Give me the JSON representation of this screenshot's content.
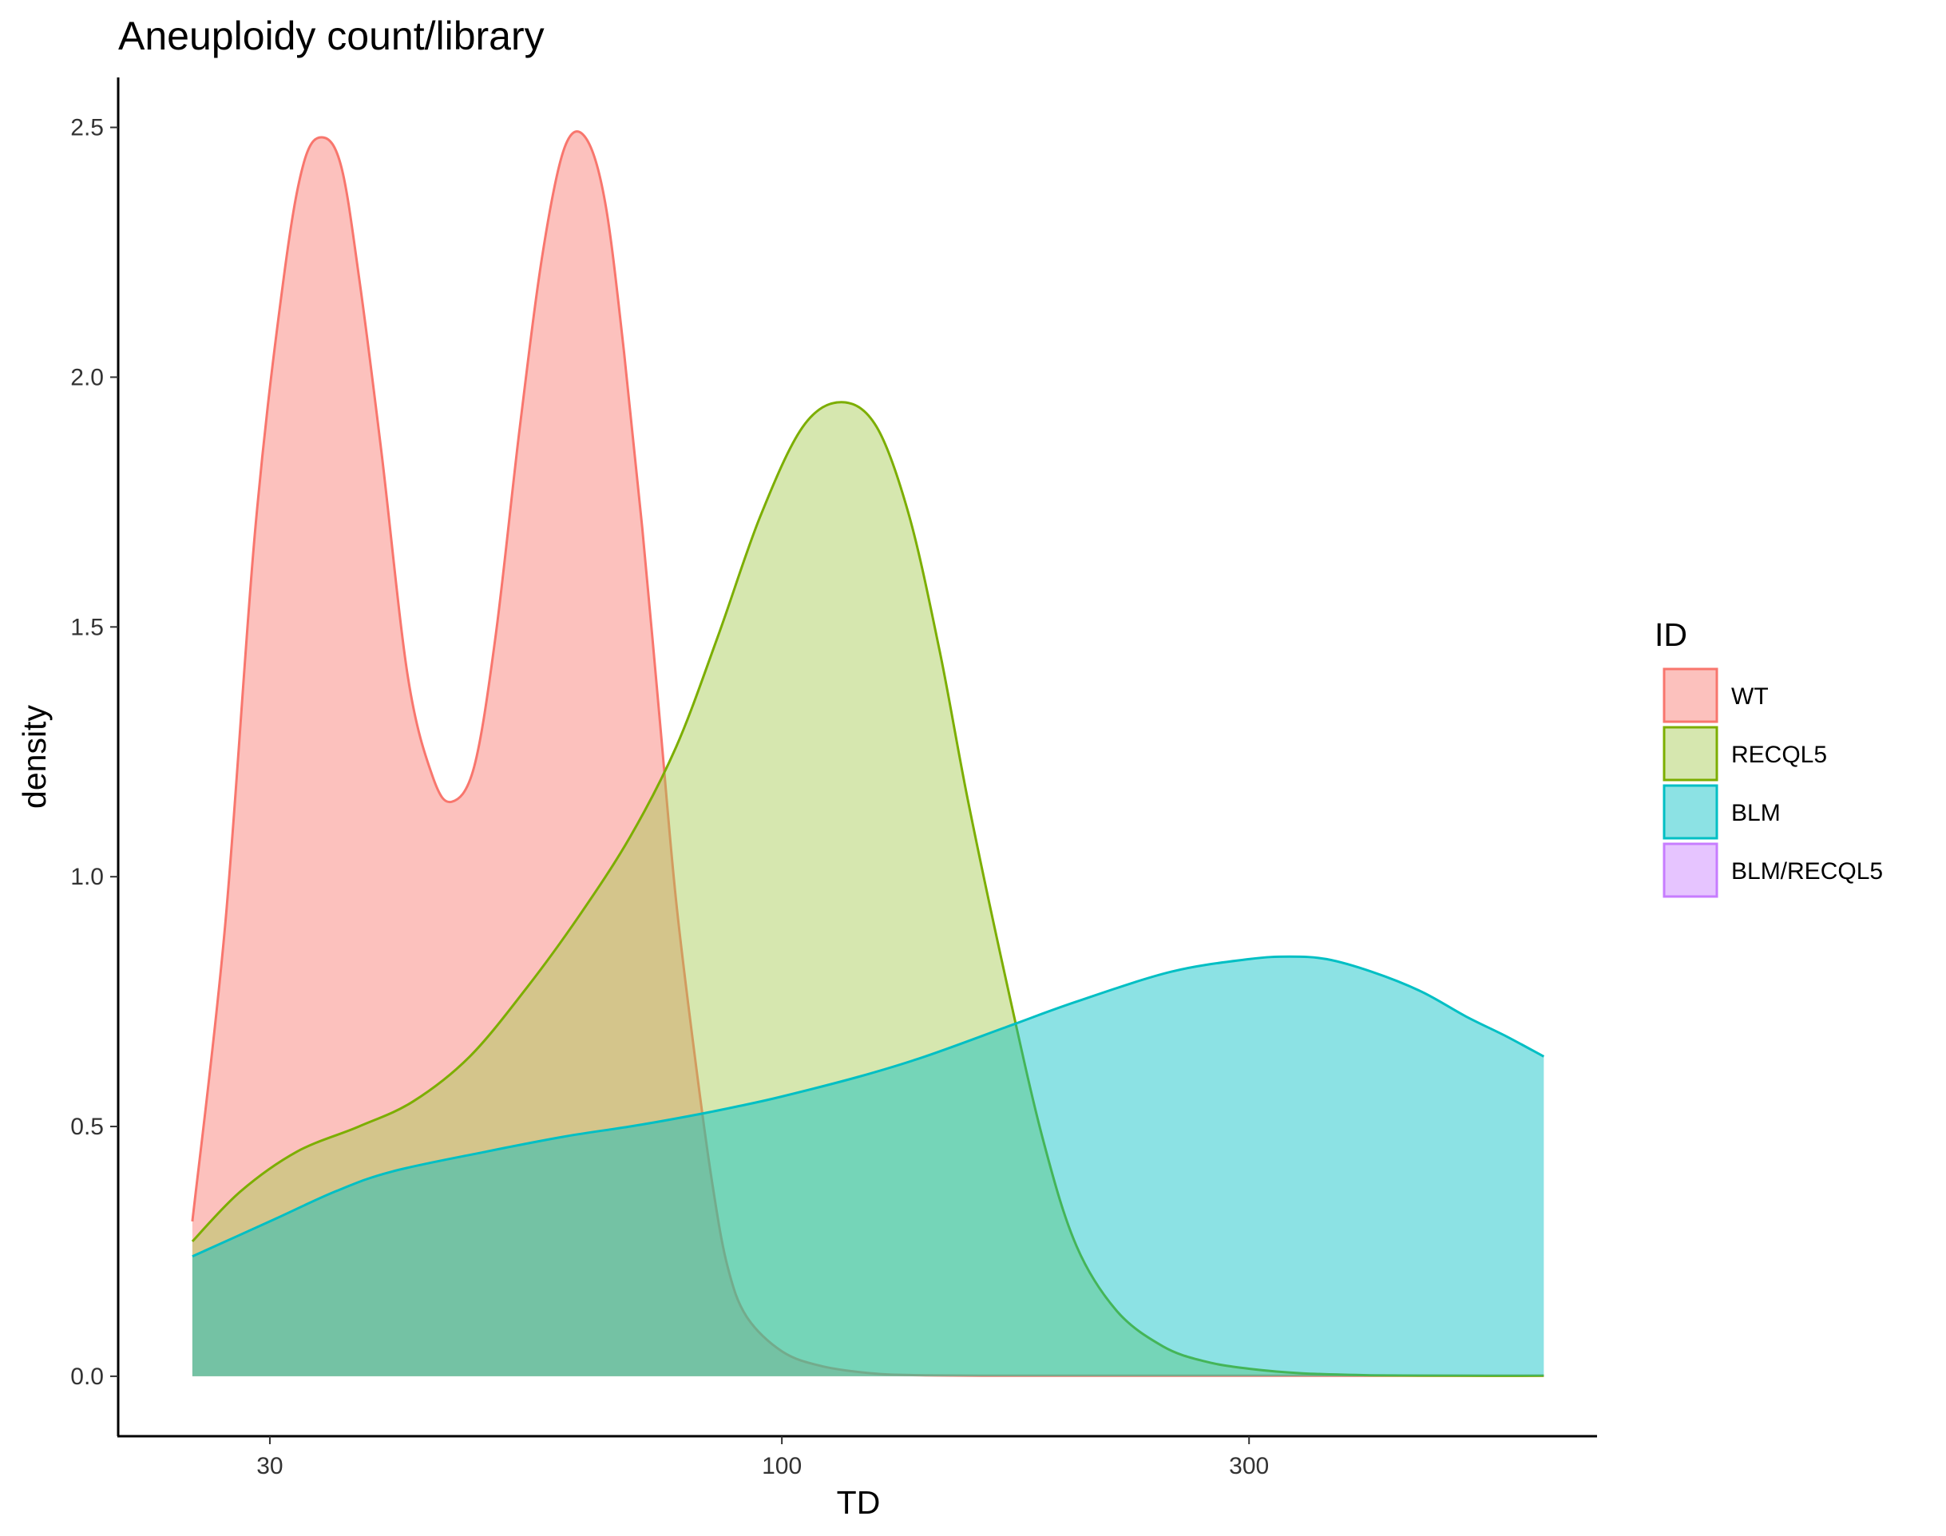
{
  "chart_data": {
    "type": "area",
    "title": "Aneuploidy count/library",
    "xlabel": "TD",
    "ylabel": "density",
    "x_scale": "log10",
    "xlim": [
      21,
      680
    ],
    "ylim": [
      -0.12,
      2.6
    ],
    "x_ticks": [
      30,
      100,
      300
    ],
    "x_tick_labels": [
      "30",
      "100",
      "300"
    ],
    "y_ticks": [
      0.0,
      0.5,
      1.0,
      1.5,
      2.0,
      2.5
    ],
    "y_tick_labels": [
      "0.0",
      "0.5",
      "1.0",
      "1.5",
      "2.0",
      "2.5"
    ],
    "grid": false,
    "legend": {
      "title": "ID",
      "position": "right",
      "entries": [
        "WT",
        "RECQL5",
        "BLM",
        "BLM/RECQL5"
      ]
    },
    "series": [
      {
        "name": "WT",
        "line_color": "#F8766D",
        "fill_color": "#F8766D",
        "x": [
          25,
          27,
          29,
          31,
          32.5,
          34,
          35.5,
          37,
          39,
          41.5,
          44,
          46,
          48.5,
          51,
          54,
          57,
          60,
          63,
          66,
          69,
          72,
          75,
          78,
          82,
          85,
          88,
          92,
          100,
          110,
          125,
          140,
          160,
          200,
          300,
          400,
          600
        ],
        "values": [
          0.31,
          0.9,
          1.7,
          2.2,
          2.43,
          2.48,
          2.42,
          2.2,
          1.85,
          1.4,
          1.2,
          1.15,
          1.22,
          1.48,
          1.9,
          2.25,
          2.46,
          2.48,
          2.35,
          2.05,
          1.7,
          1.32,
          0.95,
          0.6,
          0.38,
          0.22,
          0.12,
          0.05,
          0.02,
          0.005,
          0.002,
          0.001,
          0.001,
          0.001,
          0.001,
          0.001
        ]
      },
      {
        "name": "RECQL5",
        "line_color": "#7CAE00",
        "fill_color": "#A3C94E",
        "x": [
          25,
          28,
          32,
          37,
          42,
          48,
          55,
          62,
          70,
          78,
          86,
          95,
          105,
          115,
          125,
          135,
          145,
          155,
          170,
          185,
          200,
          220,
          245,
          270,
          300,
          340,
          400,
          500,
          600
        ],
        "values": [
          0.27,
          0.37,
          0.45,
          0.5,
          0.55,
          0.64,
          0.78,
          0.92,
          1.08,
          1.26,
          1.48,
          1.72,
          1.9,
          1.95,
          1.9,
          1.72,
          1.45,
          1.15,
          0.78,
          0.47,
          0.26,
          0.13,
          0.06,
          0.03,
          0.015,
          0.006,
          0.002,
          0.001,
          0.001
        ]
      },
      {
        "name": "BLM",
        "line_color": "#00BFC4",
        "fill_color": "#00BFC4",
        "x": [
          25,
          30,
          35,
          40,
          50,
          60,
          70,
          80,
          90,
          100,
          120,
          140,
          170,
          200,
          250,
          300,
          330,
          360,
          400,
          450,
          500,
          550,
          600
        ],
        "values": [
          0.24,
          0.31,
          0.37,
          0.41,
          0.45,
          0.48,
          0.5,
          0.52,
          0.54,
          0.56,
          0.6,
          0.64,
          0.7,
          0.75,
          0.81,
          0.835,
          0.84,
          0.835,
          0.81,
          0.77,
          0.72,
          0.68,
          0.64
        ]
      },
      {
        "name": "BLM/RECQL5",
        "line_color": "#C77CFF",
        "fill_color": "#C77CFF",
        "x": [],
        "values": []
      }
    ]
  }
}
